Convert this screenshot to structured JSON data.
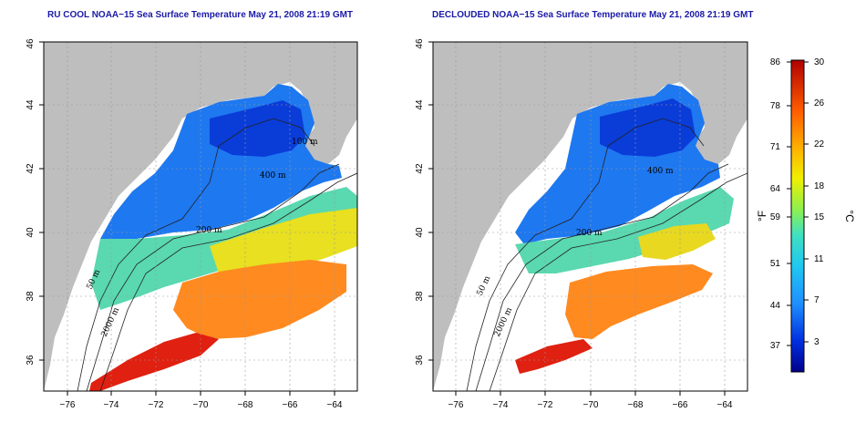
{
  "titles": {
    "left": "RU COOL NOAA−15 Sea Surface Temperature May 21, 2008 21:19 GMT",
    "right": "DECLOUDED NOAA−15 Sea Surface Temperature May 21, 2008 21:19 GMT"
  },
  "x_ticks": [
    "−76",
    "−74",
    "−72",
    "−70",
    "−68",
    "−66",
    "−64"
  ],
  "y_ticks": [
    "36",
    "38",
    "40",
    "42",
    "44",
    "46"
  ],
  "contour_labels": [
    "50 m",
    "200 m",
    "2000 m",
    "400 m",
    "400 m",
    "100 m"
  ],
  "colorbar": {
    "fahrenheit_ticks": [
      "86",
      "78",
      "71",
      "64",
      "59",
      "51",
      "44",
      "37"
    ],
    "celsius_ticks": [
      "30",
      "26",
      "22",
      "18",
      "15",
      "11",
      "7",
      "3"
    ],
    "left_unit": "°F",
    "right_unit": "°C",
    "colors": [
      "#00008b",
      "#0044ee",
      "#1e90ff",
      "#20c0f0",
      "#40e0d0",
      "#7cfc00",
      "#ffff00",
      "#ffa500",
      "#ff4500",
      "#b00000"
    ]
  },
  "colors": {
    "land": "#bebebe",
    "ocean_nodata": "#ffffff",
    "title": "#1a1aa8",
    "grid": "#999999"
  }
}
